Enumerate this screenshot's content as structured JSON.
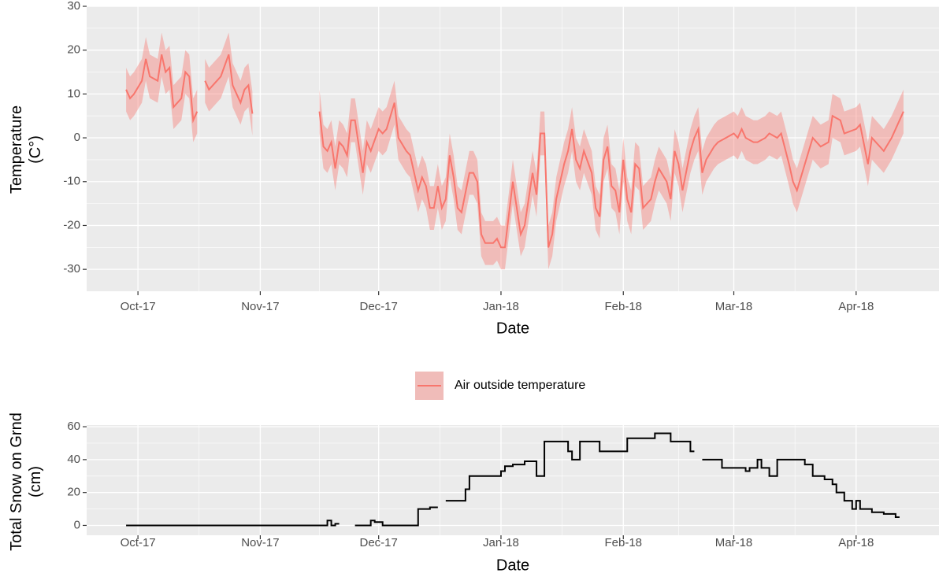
{
  "chart_data": [
    {
      "type": "line",
      "xlabel": "Date",
      "ylabel": [
        "Temperature",
        "(C°)"
      ],
      "grid": true,
      "legend": "bottom",
      "xlim": [
        "2017-09-18",
        "2018-04-22"
      ],
      "xticks": [
        {
          "value": "2017-10-01",
          "label": "Oct-17"
        },
        {
          "value": "2017-11-01",
          "label": "Nov-17"
        },
        {
          "value": "2017-12-01",
          "label": "Dec-17"
        },
        {
          "value": "2018-01-01",
          "label": "Jan-18"
        },
        {
          "value": "2018-02-01",
          "label": "Feb-18"
        },
        {
          "value": "2018-03-01",
          "label": "Mar-18"
        },
        {
          "value": "2018-04-01",
          "label": "Apr-18"
        }
      ],
      "ylim": [
        -35,
        30
      ],
      "yticks": [
        -30,
        -20,
        -10,
        0,
        10,
        20,
        30
      ],
      "series": [
        {
          "name": "Air outside temperature",
          "color": "#F8766D",
          "x": [
            "2017-09-28",
            "2017-09-29",
            "2017-09-30",
            "2017-10-02",
            "2017-10-03",
            "2017-10-04",
            "2017-10-06",
            "2017-10-07",
            "2017-10-08",
            "2017-10-09",
            "2017-10-10",
            "2017-10-12",
            "2017-10-13",
            "2017-10-14",
            "2017-10-15",
            "2017-10-16",
            "2017-10-17",
            "2017-10-18",
            "2017-10-19",
            "2017-10-21",
            "2017-10-22",
            "2017-10-24",
            "2017-10-25",
            "2017-10-27",
            "2017-10-28",
            "2017-10-29",
            "2017-10-30",
            "2017-10-31",
            "2017-11-16",
            "2017-11-17",
            "2017-11-18",
            "2017-11-19",
            "2017-11-20",
            "2017-11-21",
            "2017-11-22",
            "2017-11-23",
            "2017-11-24",
            "2017-11-25",
            "2017-11-27",
            "2017-11-28",
            "2017-11-29",
            "2017-12-01",
            "2017-12-02",
            "2017-12-03",
            "2017-12-05",
            "2017-12-06",
            "2017-12-08",
            "2017-12-09",
            "2017-12-11",
            "2017-12-12",
            "2017-12-13",
            "2017-12-14",
            "2017-12-15",
            "2017-12-16",
            "2017-12-17",
            "2017-12-18",
            "2017-12-19",
            "2017-12-20",
            "2017-12-21",
            "2017-12-22",
            "2017-12-24",
            "2017-12-25",
            "2017-12-26",
            "2017-12-27",
            "2017-12-28",
            "2017-12-30",
            "2017-12-31",
            "2018-01-01",
            "2018-01-02",
            "2018-01-04",
            "2018-01-06",
            "2018-01-07",
            "2018-01-09",
            "2018-01-10",
            "2018-01-11",
            "2018-01-12",
            "2018-01-13",
            "2018-01-14",
            "2018-01-15",
            "2018-01-17",
            "2018-01-18",
            "2018-01-19",
            "2018-01-20",
            "2018-01-21",
            "2018-01-22",
            "2018-01-24",
            "2018-01-25",
            "2018-01-26",
            "2018-01-27",
            "2018-01-28",
            "2018-01-29",
            "2018-01-30",
            "2018-01-31",
            "2018-02-01",
            "2018-02-02",
            "2018-02-03",
            "2018-02-04",
            "2018-02-05",
            "2018-02-06",
            "2018-02-08",
            "2018-02-09",
            "2018-02-10",
            "2018-02-12",
            "2018-02-13",
            "2018-02-14",
            "2018-02-15",
            "2018-02-16",
            "2018-02-18",
            "2018-02-19",
            "2018-02-20",
            "2018-02-21",
            "2018-02-22",
            "2018-02-24",
            "2018-02-25",
            "2018-02-27",
            "2018-03-01",
            "2018-03-02",
            "2018-03-03",
            "2018-03-04",
            "2018-03-06",
            "2018-03-07",
            "2018-03-09",
            "2018-03-10",
            "2018-03-12",
            "2018-03-13",
            "2018-03-15",
            "2018-03-16",
            "2018-03-17",
            "2018-03-18",
            "2018-03-19",
            "2018-03-21",
            "2018-03-22",
            "2018-03-23",
            "2018-03-25",
            "2018-03-26",
            "2018-03-28",
            "2018-03-29",
            "2018-04-01",
            "2018-04-02",
            "2018-04-04",
            "2018-04-05",
            "2018-04-07",
            "2018-04-08",
            "2018-04-10",
            "2018-04-13"
          ],
          "values": [
            11,
            9,
            10,
            13,
            18,
            14,
            13,
            19,
            15,
            16,
            7,
            9,
            15,
            14,
            4,
            6,
            null,
            13,
            11,
            13,
            14,
            19,
            12,
            8,
            11,
            12,
            5.5,
            null,
            6,
            -2,
            -3,
            -1,
            -7,
            -1,
            -2,
            -4,
            4,
            4,
            -8,
            -1,
            -3,
            2,
            1,
            2,
            8,
            0,
            -3,
            -4,
            -12,
            -9,
            -11,
            -16,
            -16,
            -11,
            -16,
            -14,
            -4,
            -9,
            -16,
            -17,
            -8,
            -8,
            -10,
            -22,
            -24,
            -24,
            -23,
            -25,
            -25,
            -10,
            -22,
            -20,
            -8,
            -13,
            1,
            1,
            -25,
            -22,
            -14,
            -6,
            -3,
            2,
            -5,
            -7,
            -3,
            -8,
            -16,
            -18,
            -5,
            -2,
            -11,
            -12,
            -17,
            -5,
            -14,
            -17,
            -6,
            -7,
            -16,
            -14,
            -10,
            -7,
            -10,
            -14,
            -3,
            -6,
            -12,
            -3,
            0,
            2,
            -8,
            -5,
            -2,
            -1,
            0,
            1,
            0,
            2,
            0,
            -1,
            -1,
            0,
            1,
            0,
            1,
            -6,
            -10,
            -12,
            -9,
            -6,
            0,
            -1,
            -2,
            -1,
            5,
            4,
            1,
            2,
            3,
            -6,
            0,
            -2,
            -3,
            0,
            6
          ],
          "upper": [
            16,
            14,
            15,
            18,
            23,
            19,
            18,
            24,
            20,
            21,
            12,
            14,
            20,
            19,
            9,
            11,
            null,
            18,
            16,
            18,
            19,
            24,
            17,
            13,
            16,
            17,
            10.5,
            null,
            11,
            3,
            2,
            4,
            -2,
            4,
            3,
            1,
            9,
            9,
            -3,
            4,
            2,
            7,
            6,
            7,
            13,
            5,
            2,
            1,
            -7,
            -4,
            -6,
            -11,
            -11,
            -6,
            -11,
            -9,
            1,
            -4,
            -11,
            -12,
            -3,
            -3,
            -5,
            -17,
            -19,
            -19,
            -18,
            -20,
            -20,
            -5,
            -17,
            -15,
            -3,
            -8,
            6,
            6,
            -20,
            -17,
            -9,
            -1,
            2,
            7,
            0,
            -2,
            2,
            -3,
            -11,
            -13,
            0,
            3,
            -6,
            -7,
            -12,
            0,
            -9,
            -12,
            -1,
            -2,
            -11,
            -9,
            -5,
            -2,
            -5,
            -9,
            2,
            -1,
            -7,
            2,
            5,
            7,
            -3,
            0,
            3,
            4,
            5,
            6,
            5,
            7,
            5,
            4,
            4,
            5,
            6,
            5,
            6,
            -1,
            -5,
            -7,
            -4,
            -1,
            5,
            4,
            3,
            4,
            10,
            9,
            6,
            7,
            8,
            -1,
            5,
            3,
            2,
            5,
            11
          ],
          "lower": [
            6,
            4,
            5,
            8,
            13,
            9,
            8,
            14,
            10,
            11,
            2,
            4,
            10,
            9,
            -1,
            1,
            null,
            8,
            6,
            8,
            9,
            14,
            7,
            3,
            6,
            7,
            0.5,
            null,
            1,
            -7,
            -8,
            -6,
            -12,
            -6,
            -7,
            -9,
            -1,
            -1,
            -13,
            -6,
            -8,
            -3,
            -4,
            -3,
            3,
            -5,
            -8,
            -9,
            -17,
            -14,
            -16,
            -21,
            -21,
            -16,
            -21,
            -19,
            -9,
            -14,
            -21,
            -22,
            -13,
            -13,
            -15,
            -27,
            -29,
            -29,
            -28,
            -30,
            -30,
            -15,
            -27,
            -25,
            -13,
            -18,
            -4,
            -4,
            -30,
            -27,
            -19,
            -11,
            -8,
            -3,
            -10,
            -12,
            -8,
            -13,
            -21,
            -23,
            -10,
            -7,
            -16,
            -17,
            -22,
            -10,
            -19,
            -22,
            -11,
            -12,
            -21,
            -19,
            -15,
            -12,
            -15,
            -19,
            -8,
            -11,
            -17,
            -8,
            -5,
            -3,
            -13,
            -10,
            -7,
            -6,
            -5,
            -4,
            -5,
            -3,
            -5,
            -6,
            -6,
            -5,
            -4,
            -5,
            -4,
            -11,
            -15,
            -17,
            -14,
            -11,
            -5,
            -6,
            -7,
            -6,
            0,
            -1,
            -4,
            -3,
            -2,
            -11,
            -5,
            -7,
            -8,
            -5,
            1
          ]
        }
      ]
    },
    {
      "type": "step",
      "xlabel": "Date",
      "ylabel": [
        "Total Snow on Grnd",
        "(cm)"
      ],
      "grid": true,
      "xlim": [
        "2017-09-18",
        "2018-04-22"
      ],
      "xticks": [
        {
          "value": "2017-10-01",
          "label": "Oct-17"
        },
        {
          "value": "2017-11-01",
          "label": "Nov-17"
        },
        {
          "value": "2017-12-01",
          "label": "Dec-17"
        },
        {
          "value": "2018-01-01",
          "label": "Jan-18"
        },
        {
          "value": "2018-02-01",
          "label": "Feb-18"
        },
        {
          "value": "2018-03-01",
          "label": "Mar-18"
        },
        {
          "value": "2018-04-01",
          "label": "Apr-18"
        }
      ],
      "ylim": [
        -6,
        61
      ],
      "yticks": [
        0,
        20,
        40,
        60
      ],
      "series": [
        {
          "color": "#000000",
          "x": [
            "2017-09-28",
            "2017-11-18",
            "2017-11-19",
            "2017-11-20",
            "2017-11-21",
            "2017-11-22",
            "2017-11-25",
            "2017-11-29",
            "2017-11-30",
            "2017-12-02",
            "2017-12-11",
            "2017-12-14",
            "2017-12-16",
            "2017-12-17",
            "2017-12-18",
            "2017-12-23",
            "2017-12-24",
            "2018-01-01",
            "2018-01-02",
            "2018-01-04",
            "2018-01-07",
            "2018-01-10",
            "2018-01-12",
            "2018-01-18",
            "2018-01-19",
            "2018-01-21",
            "2018-01-26",
            "2018-02-02",
            "2018-02-09",
            "2018-02-13",
            "2018-02-18",
            "2018-02-19",
            "2018-02-20",
            "2018-02-21",
            "2018-02-26",
            "2018-03-04",
            "2018-03-05",
            "2018-03-07",
            "2018-03-08",
            "2018-03-10",
            "2018-03-12",
            "2018-03-19",
            "2018-03-21",
            "2018-03-24",
            "2018-03-26",
            "2018-03-27",
            "2018-03-29",
            "2018-03-31",
            "2018-04-01",
            "2018-04-02",
            "2018-04-05",
            "2018-04-08",
            "2018-04-11",
            "2018-04-12"
          ],
          "values": [
            0,
            3,
            0,
            1,
            1,
            null,
            0,
            3,
            2,
            0,
            10,
            11,
            11,
            null,
            15,
            22,
            30,
            33,
            36,
            37,
            39,
            30,
            51,
            45,
            40,
            51,
            45,
            53,
            56,
            51,
            45,
            45,
            null,
            40,
            35,
            33,
            35,
            40,
            35,
            30,
            40,
            37,
            30,
            28,
            25,
            20,
            15,
            10,
            15,
            10,
            8,
            7,
            5,
            5
          ]
        }
      ]
    }
  ]
}
